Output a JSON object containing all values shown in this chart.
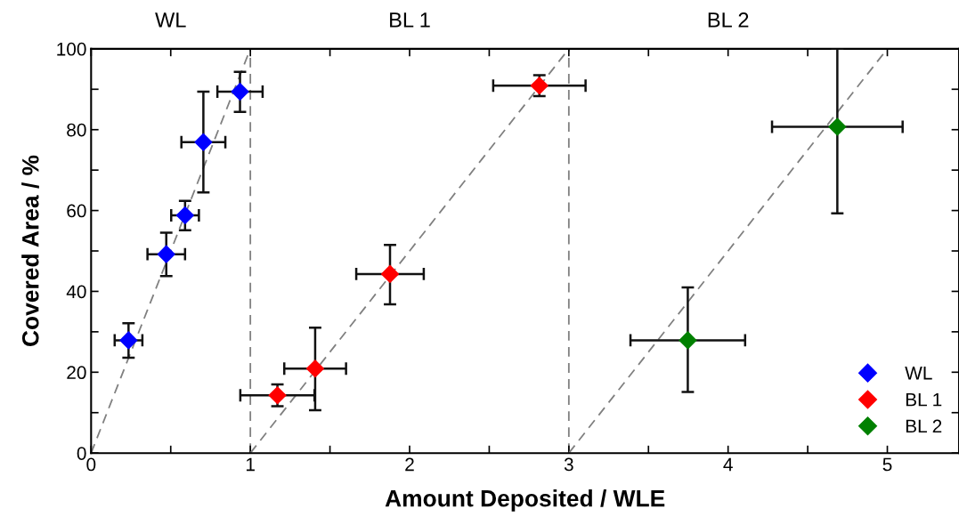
{
  "chart_data": {
    "type": "scatter",
    "xlabel": "Amount Deposited / WLE",
    "ylabel": "Covered Area / %",
    "xlim": [
      0,
      5.45
    ],
    "ylim": [
      0,
      100
    ],
    "xticks": [
      0,
      {
        "value": 0.5,
        "label": null
      },
      1,
      {
        "value": 1.5,
        "label": null
      },
      2,
      {
        "value": 2.5,
        "label": null
      },
      3,
      {
        "value": 3.5,
        "label": null
      },
      4,
      {
        "value": 4.5,
        "label": null
      },
      5
    ],
    "yticks": [
      0,
      {
        "value": 10,
        "label": null
      },
      20,
      {
        "value": 30,
        "label": null
      },
      40,
      {
        "value": 50,
        "label": null
      },
      60,
      {
        "value": 70,
        "label": null
      },
      80,
      {
        "value": 90,
        "label": null
      },
      100
    ],
    "legend": "bottom right",
    "grid": false,
    "series": [
      {
        "name": "WL",
        "marker": "diamond",
        "color": "#0000ff",
        "x": [
          0.235,
          0.472,
          0.59,
          0.705,
          0.935
        ],
        "values": [
          27.9,
          49.2,
          58.8,
          76.9,
          89.4
        ],
        "errors": [
          [
            23.6,
            32.1
          ],
          [
            43.8,
            54.5
          ],
          [
            55.1,
            62.4
          ],
          [
            64.5,
            89.4
          ],
          [
            84.4,
            94.3
          ]
        ],
        "xerrors": [
          0.087,
          0.118,
          0.087,
          0.138,
          0.142
        ]
      },
      {
        "name": "BL 1",
        "marker": "diamond",
        "color": "#ff0000",
        "x": [
          1.17,
          1.407,
          1.877,
          2.815
        ],
        "values": [
          14.3,
          20.9,
          44.3,
          90.9
        ],
        "errors": [
          [
            11.6,
            17.0
          ],
          [
            10.6,
            31.0
          ],
          [
            36.8,
            51.5
          ],
          [
            88.3,
            93.5
          ]
        ],
        "xerrors": [
          0.233,
          0.194,
          0.212,
          0.29
        ]
      },
      {
        "name": "BL 2",
        "marker": "diamond",
        "color": "#008000",
        "x": [
          3.747,
          4.686
        ],
        "values": [
          27.9,
          80.7
        ],
        "errors": [
          [
            15.1,
            41.0
          ],
          [
            59.3,
            100
          ]
        ],
        "xerrors": [
          0.36,
          0.41
        ]
      },
      {
        "type": "line",
        "color": "#808080",
        "line_style": "dashed",
        "x": [
          0,
          1
        ],
        "values": [
          0,
          100
        ]
      },
      {
        "type": "line",
        "color": "#808080",
        "line_style": "dashed",
        "x": [
          1,
          3
        ],
        "values": [
          0,
          100
        ]
      },
      {
        "type": "line",
        "color": "#808080",
        "line_style": "dashed",
        "x": [
          3,
          5
        ],
        "values": [
          0,
          100
        ]
      }
    ],
    "ref_lines": [
      {
        "axis": "x",
        "value": 1,
        "color": "#808080",
        "line_style": "dashed"
      },
      {
        "axis": "x",
        "value": 3,
        "color": "#808080",
        "line_style": "dashed"
      }
    ],
    "annotations": [
      "WL",
      "BL 1",
      "BL 2"
    ]
  }
}
